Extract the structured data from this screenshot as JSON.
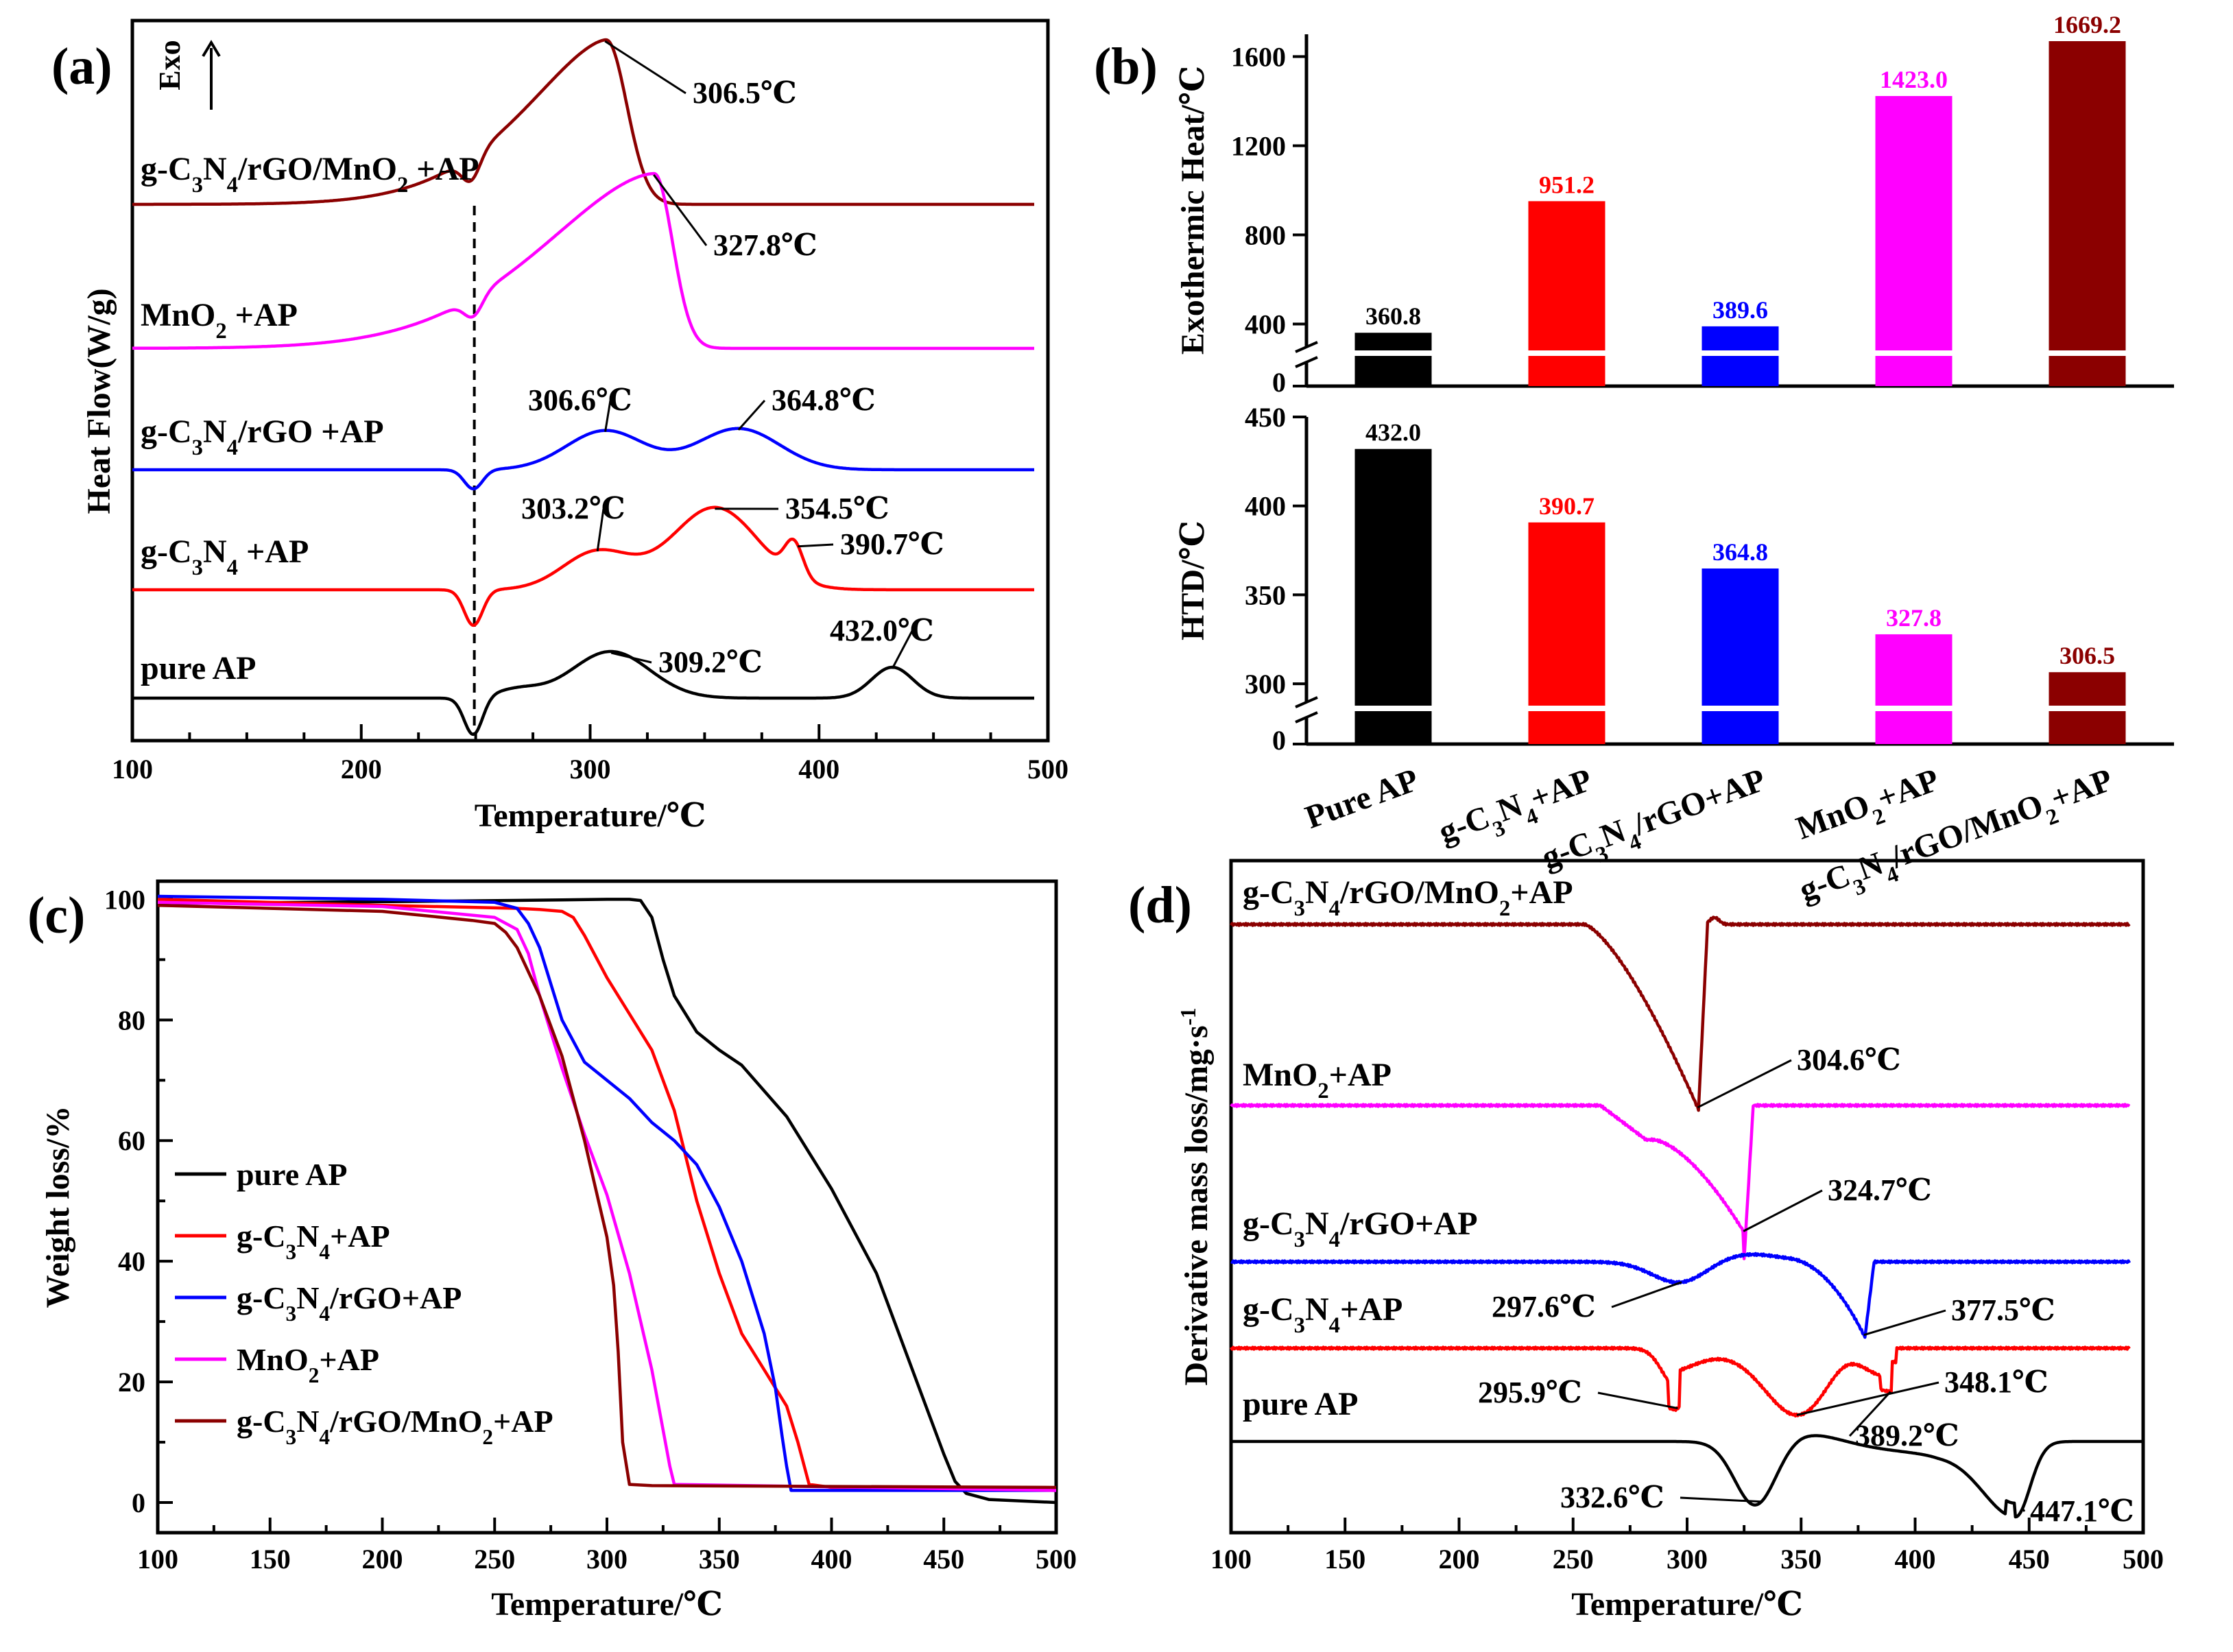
{
  "figure": {
    "panels": [
      "(a)",
      "(b)",
      "(c)",
      "(d)"
    ]
  },
  "colors": {
    "black": "#000000",
    "red": "#ff0000",
    "blue": "#0000ff",
    "magenta": "#ff00ff",
    "darkred": "#8b0000"
  },
  "chart_data": [
    {
      "id": "a",
      "type": "line",
      "title": "(a)",
      "xlabel": "Temperature/℃",
      "ylabel": "Heat Flow(W/g)",
      "xlim": [
        100,
        500
      ],
      "xticks": [
        100,
        200,
        300,
        400,
        500
      ],
      "direction_label": "Exo",
      "dashed_line_x": 250,
      "series": [
        {
          "name": "g-C3N4/rGO/MnO2 +AP",
          "color": "#8b0000",
          "peaks": [
            {
              "x": 306.5,
              "label": "306.5℃"
            }
          ]
        },
        {
          "name": "MnO2 +AP",
          "color": "#ff00ff",
          "peaks": [
            {
              "x": 327.8,
              "label": "327.8℃"
            }
          ]
        },
        {
          "name": "g-C3N4/rGO +AP",
          "color": "#0000ff",
          "peaks": [
            {
              "x": 306.6,
              "label": "306.6℃"
            },
            {
              "x": 364.8,
              "label": "364.8℃"
            }
          ]
        },
        {
          "name": "g-C3N4 +AP",
          "color": "#ff0000",
          "peaks": [
            {
              "x": 303.2,
              "label": "303.2℃"
            },
            {
              "x": 354.5,
              "label": "354.5℃"
            },
            {
              "x": 390.7,
              "label": "390.7℃"
            }
          ]
        },
        {
          "name": "pure AP",
          "color": "#000000",
          "peaks": [
            {
              "x": 309.2,
              "label": "309.2℃"
            },
            {
              "x": 432.0,
              "label": "432.0℃"
            }
          ]
        }
      ]
    },
    {
      "id": "b",
      "type": "bar",
      "title": "(b)",
      "categories": [
        "Pure AP",
        "g-C3N4+AP",
        "g-C3N4/rGO+AP",
        "MnO2+AP",
        "g-C3N4/rGO/MnO2+AP"
      ],
      "category_colors": [
        "#000000",
        "#ff0000",
        "#0000ff",
        "#ff00ff",
        "#8b0000"
      ],
      "top": {
        "ylabel": "Exothermic Heat/℃",
        "values": [
          360.8,
          951.2,
          389.6,
          1423.0,
          1669.2
        ],
        "labels": [
          "360.8",
          "951.2",
          "389.6",
          "1423.0",
          "1669.2"
        ],
        "ylim": [
          300,
          1700
        ],
        "yticks": [
          400,
          800,
          1200,
          1600
        ],
        "break_tick": "0"
      },
      "bottom": {
        "ylabel": "HTD/℃",
        "values": [
          432.0,
          390.7,
          364.8,
          327.8,
          306.5
        ],
        "labels": [
          "432.0",
          "390.7",
          "364.8",
          "327.8",
          "306.5"
        ],
        "ylim": [
          290,
          450
        ],
        "yticks": [
          300,
          350,
          400,
          450
        ],
        "break_tick": "0"
      }
    },
    {
      "id": "c",
      "type": "line",
      "title": "(c)",
      "xlabel": "Temperature/℃",
      "ylabel": "Weight loss/%",
      "xlim": [
        100,
        500
      ],
      "ylim": [
        -5,
        103
      ],
      "xticks": [
        100,
        150,
        200,
        250,
        300,
        350,
        400,
        450,
        500
      ],
      "yticks": [
        0,
        20,
        40,
        60,
        80,
        100
      ],
      "legend": [
        "pure AP",
        "g-C3N4+AP",
        "g-C3N4/rGO+AP",
        "MnO2+AP",
        "g-C3N4/rGO/MnO2+AP"
      ],
      "series": [
        {
          "name": "pure AP",
          "color": "#000000",
          "x": [
            100,
            200,
            280,
            300,
            310,
            315,
            320,
            325,
            330,
            340,
            350,
            360,
            380,
            400,
            420,
            440,
            450,
            455,
            460,
            470,
            500
          ],
          "y": [
            99.3,
            99.6,
            99.9,
            100,
            100,
            99.8,
            97,
            90,
            84,
            78,
            75,
            72.5,
            64,
            52,
            38,
            18,
            8,
            3.5,
            1.5,
            0.5,
            0
          ]
        },
        {
          "name": "g-C3N4+AP",
          "color": "#ff0000",
          "x": [
            100,
            200,
            260,
            270,
            280,
            285,
            290,
            300,
            310,
            320,
            330,
            340,
            350,
            360,
            370,
            375,
            380,
            385,
            390,
            400,
            500
          ],
          "y": [
            100,
            99,
            98.5,
            98.3,
            98,
            97,
            94,
            87,
            81,
            75,
            65,
            50,
            38,
            28,
            22,
            19,
            16,
            10,
            3,
            2.5,
            2
          ]
        },
        {
          "name": "g-C3N4/rGO+AP",
          "color": "#0000ff",
          "x": [
            100,
            200,
            250,
            260,
            265,
            270,
            275,
            280,
            290,
            300,
            310,
            320,
            330,
            340,
            350,
            360,
            370,
            375,
            378,
            380,
            382,
            390,
            500
          ],
          "y": [
            100.5,
            100,
            99.5,
            98.5,
            96,
            92,
            86,
            80,
            73,
            70,
            67,
            63,
            60,
            56,
            49,
            40,
            28,
            19,
            11,
            6,
            2,
            2,
            2
          ]
        },
        {
          "name": "MnO2+AP",
          "color": "#ff00ff",
          "x": [
            100,
            200,
            250,
            260,
            265,
            270,
            280,
            290,
            300,
            310,
            320,
            325,
            328,
            330,
            500
          ],
          "y": [
            99.5,
            98.8,
            97,
            95,
            91,
            84,
            72,
            61,
            51,
            38,
            22,
            12,
            6,
            3,
            2
          ]
        },
        {
          "name": "g-C3N4/rGO/MnO2+AP",
          "color": "#8b0000",
          "x": [
            100,
            200,
            240,
            250,
            255,
            260,
            270,
            280,
            290,
            295,
            300,
            303,
            305,
            307,
            310,
            320,
            500
          ],
          "y": [
            99,
            98,
            96.5,
            96,
            94.5,
            92,
            84,
            74,
            60,
            52,
            44,
            36,
            25,
            10,
            3,
            2.8,
            2.5
          ]
        }
      ]
    },
    {
      "id": "d",
      "type": "line",
      "title": "(d)",
      "xlabel": "Temperature/℃",
      "ylabel": "Derivative mass loss/mg·s",
      "ylabel_sup": "-1",
      "xlim": [
        100,
        500
      ],
      "xticks": [
        100,
        150,
        200,
        250,
        300,
        350,
        400,
        450,
        500
      ],
      "series": [
        {
          "name": "g-C3N4/rGO/MnO2+AP",
          "color": "#8b0000",
          "peaks": [
            {
              "x": 304.6,
              "label": "304.6℃"
            }
          ]
        },
        {
          "name": "MnO2+AP",
          "color": "#ff00ff",
          "peaks": [
            {
              "x": 324.7,
              "label": "324.7℃"
            }
          ]
        },
        {
          "name": "g-C3N4/rGO+AP",
          "color": "#0000ff",
          "peaks": [
            {
              "x": 297.6,
              "label": "297.6℃"
            },
            {
              "x": 377.5,
              "label": "377.5℃"
            }
          ]
        },
        {
          "name": "g-C3N4+AP",
          "color": "#ff0000",
          "peaks": [
            {
              "x": 295.9,
              "label": "295.9℃"
            },
            {
              "x": 348.1,
              "label": "348.1℃"
            },
            {
              "x": 389.2,
              "label": "389.2℃"
            }
          ]
        },
        {
          "name": "pure AP",
          "color": "#000000",
          "peaks": [
            {
              "x": 332.6,
              "label": "332.6℃"
            },
            {
              "x": 447.1,
              "label": "447.1℃"
            }
          ]
        }
      ]
    }
  ]
}
